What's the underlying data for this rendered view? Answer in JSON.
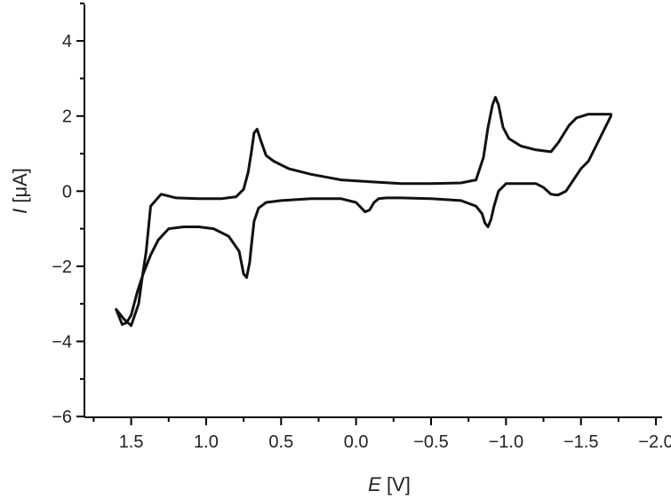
{
  "chart_data": {
    "type": "line",
    "title": "",
    "xlabel": {
      "symbol": "E",
      "unit": " [V]"
    },
    "ylabel": {
      "symbol": "I",
      "unit": " [μA]"
    },
    "xlim": [
      1.8,
      -2.0
    ],
    "ylim": [
      -6,
      5
    ],
    "x_ticks": [
      1.5,
      1.0,
      0.5,
      0.0,
      -0.5,
      -1.0,
      -1.5,
      -2.0
    ],
    "x_tick_labels": [
      "1.5",
      "1.0",
      "0.5",
      "0.0",
      "−0.5",
      "−1.0",
      "−1.5",
      "−2.0"
    ],
    "x_minor_ticks": [
      1.75,
      1.25,
      0.75,
      0.25,
      -0.25,
      -0.75,
      -1.25,
      -1.75
    ],
    "y_ticks": [
      4,
      2,
      0,
      -2,
      -4,
      -6
    ],
    "y_tick_labels": [
      "4",
      "2",
      "0",
      "−2",
      "−4",
      "−6"
    ],
    "y_minor_ticks": [
      5,
      3,
      1,
      -1,
      -3,
      -5
    ],
    "grid": false,
    "series": [
      {
        "color": "#111111",
        "x": [
          1.6,
          1.55,
          1.5,
          1.45,
          1.43,
          1.4,
          1.37,
          1.3,
          1.2,
          1.05,
          0.9,
          0.8,
          0.75,
          0.72,
          0.7,
          0.68,
          0.66,
          0.64,
          0.6,
          0.55,
          0.45,
          0.3,
          0.1,
          -0.1,
          -0.3,
          -0.5,
          -0.7,
          -0.8,
          -0.85,
          -0.88,
          -0.91,
          -0.93,
          -0.95,
          -0.98,
          -1.02,
          -1.1,
          -1.2,
          -1.3,
          -1.35,
          -1.42,
          -1.47,
          -1.55,
          -1.65,
          -1.7,
          -1.7,
          -1.65,
          -1.6,
          -1.55,
          -1.5,
          -1.45,
          -1.4,
          -1.35,
          -1.33,
          -1.3,
          -1.25,
          -1.2,
          -1.1,
          -1.0,
          -0.95,
          -0.92,
          -0.9,
          -0.88,
          -0.86,
          -0.84,
          -0.8,
          -0.7,
          -0.5,
          -0.3,
          -0.2,
          -0.15,
          -0.12,
          -0.09,
          -0.06,
          0.0,
          0.1,
          0.3,
          0.5,
          0.6,
          0.65,
          0.68,
          0.7,
          0.71,
          0.73,
          0.75,
          0.78,
          0.85,
          0.95,
          1.05,
          1.15,
          1.25,
          1.32,
          1.37,
          1.42,
          1.46,
          1.5,
          1.53,
          1.56,
          1.6
        ],
        "y": [
          -3.15,
          -3.4,
          -3.58,
          -3.0,
          -2.4,
          -1.6,
          -0.4,
          -0.08,
          -0.18,
          -0.2,
          -0.2,
          -0.15,
          0.05,
          0.5,
          1.0,
          1.55,
          1.65,
          1.4,
          0.95,
          0.8,
          0.6,
          0.45,
          0.3,
          0.25,
          0.2,
          0.2,
          0.22,
          0.3,
          0.9,
          1.7,
          2.3,
          2.5,
          2.3,
          1.7,
          1.4,
          1.2,
          1.1,
          1.05,
          1.3,
          1.75,
          1.95,
          2.05,
          2.05,
          2.05,
          2.0,
          1.6,
          1.2,
          0.8,
          0.6,
          0.3,
          0.0,
          -0.1,
          -0.1,
          -0.08,
          0.1,
          0.2,
          0.2,
          0.2,
          0.0,
          -0.4,
          -0.75,
          -0.95,
          -0.85,
          -0.6,
          -0.4,
          -0.25,
          -0.2,
          -0.18,
          -0.18,
          -0.2,
          -0.3,
          -0.5,
          -0.55,
          -0.3,
          -0.2,
          -0.2,
          -0.25,
          -0.3,
          -0.45,
          -0.8,
          -1.5,
          -1.9,
          -2.3,
          -2.2,
          -1.6,
          -1.2,
          -1.0,
          -0.95,
          -0.95,
          -1.0,
          -1.3,
          -1.7,
          -2.2,
          -2.7,
          -3.3,
          -3.5,
          -3.55,
          -3.15
        ]
      }
    ]
  }
}
